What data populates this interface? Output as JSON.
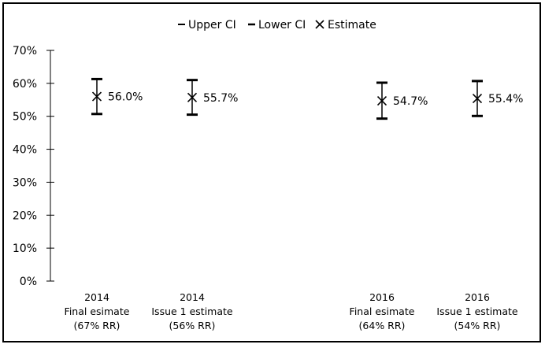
{
  "chart_data": {
    "type": "scatter",
    "title": "",
    "xlabel": "",
    "ylabel": "",
    "ylim": [
      0,
      0.7
    ],
    "y_ticks": [
      "0%",
      "10%",
      "20%",
      "30%",
      "40%",
      "50%",
      "60%",
      "70%"
    ],
    "grid": false,
    "legend_placement": "top-center",
    "legend": [
      "Upper CI",
      "Lower CI",
      "Estimate"
    ],
    "categories": [
      {
        "lines": [
          "2014",
          "Final esimate",
          "(67% RR)"
        ],
        "group": 0
      },
      {
        "lines": [
          "2014",
          "Issue 1 estimate",
          "(56% RR)"
        ],
        "group": 0
      },
      {
        "lines": [
          "2016",
          "Final esimate",
          "(64% RR)"
        ],
        "group": 1
      },
      {
        "lines": [
          "2016",
          "Issue 1 estimate",
          "(54% RR)"
        ],
        "group": 1
      }
    ],
    "series": [
      {
        "name": "Upper CI",
        "values": [
          0.613,
          0.61,
          0.602,
          0.607
        ]
      },
      {
        "name": "Lower CI",
        "values": [
          0.507,
          0.505,
          0.493,
          0.501
        ]
      },
      {
        "name": "Estimate",
        "values": [
          0.56,
          0.557,
          0.547,
          0.554
        ]
      }
    ],
    "data_labels": [
      "56.0%",
      "55.7%",
      "54.7%",
      "55.4%"
    ],
    "colors": {
      "marker": "#000000",
      "axis": "#000000"
    }
  }
}
